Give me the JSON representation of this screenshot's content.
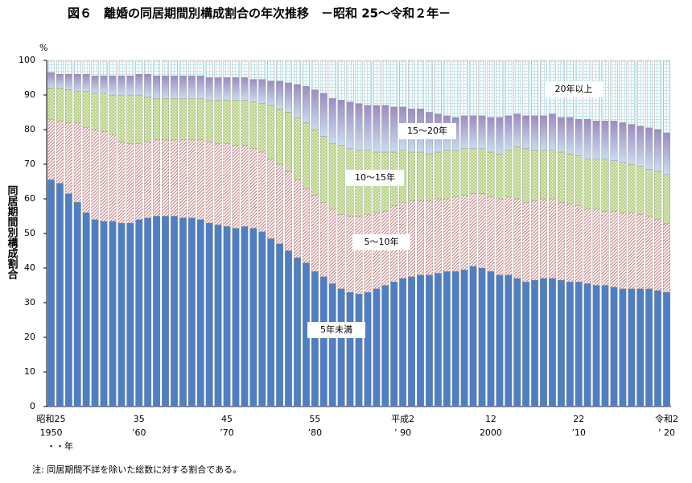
{
  "chart_data": {
    "type": "stacked_bar",
    "title": "図６　離婚の同居期間別構成割合の年次推移　－昭和 25～令和２年－",
    "y_label": "同居期間別構成割合",
    "y_unit": "%",
    "x_label": "・・年",
    "note": "注: 同居期間不詳を除いた総数に対する割合である。",
    "categories": [
      "昭和25",
      null,
      null,
      null,
      null,
      null,
      null,
      null,
      null,
      null,
      "35",
      null,
      null,
      null,
      null,
      null,
      null,
      null,
      null,
      null,
      "45",
      null,
      null,
      null,
      null,
      null,
      null,
      null,
      null,
      null,
      "55",
      null,
      null,
      null,
      null,
      null,
      null,
      null,
      null,
      null,
      "平成2",
      null,
      null,
      null,
      null,
      null,
      null,
      null,
      null,
      null,
      "12",
      null,
      null,
      null,
      null,
      null,
      null,
      null,
      null,
      null,
      "22",
      null,
      null,
      null,
      null,
      null,
      null,
      null,
      null,
      null,
      "令和2"
    ],
    "categories_western": [
      "1950",
      null,
      null,
      null,
      null,
      null,
      null,
      null,
      null,
      null,
      "’60",
      null,
      null,
      null,
      null,
      null,
      null,
      null,
      null,
      null,
      "’70",
      null,
      null,
      null,
      null,
      null,
      null,
      null,
      null,
      null,
      "’80",
      null,
      null,
      null,
      null,
      null,
      null,
      null,
      null,
      null,
      "’ 90",
      null,
      null,
      null,
      null,
      null,
      null,
      null,
      null,
      null,
      "2000",
      null,
      null,
      null,
      null,
      null,
      null,
      null,
      null,
      null,
      "’10",
      null,
      null,
      null,
      null,
      null,
      null,
      null,
      null,
      null,
      "’ 20"
    ],
    "ylim": [
      0,
      100
    ],
    "yticks": [
      0,
      10,
      20,
      30,
      40,
      50,
      60,
      70,
      80,
      90,
      100
    ],
    "series": [
      {
        "name": "5年未満",
        "color": "#4f7fc2",
        "pattern": "solid",
        "values": [
          65.5,
          64.5,
          61.5,
          59,
          56,
          54,
          53.5,
          53.5,
          53,
          53,
          54,
          54.5,
          55,
          55,
          55,
          54.5,
          54.5,
          54,
          53,
          52.5,
          52,
          51.5,
          52,
          51.5,
          50.5,
          48.5,
          47,
          45,
          43,
          41.5,
          39,
          37.5,
          35.5,
          34,
          33,
          32.5,
          33,
          34,
          35,
          36,
          37,
          37.5,
          38,
          38,
          38.5,
          39,
          39,
          39.5,
          40.5,
          40,
          39,
          38,
          38,
          37,
          36,
          36.5,
          37,
          37,
          36.5,
          36,
          36,
          35.5,
          35,
          35,
          34.5,
          34,
          34,
          34,
          34,
          33.5,
          33
        ]
      },
      {
        "name": "5～10年",
        "color": "#d08a8a",
        "pattern": "stripes",
        "values": [
          17.5,
          18,
          20.5,
          23,
          24.5,
          26,
          26,
          25,
          23.5,
          23,
          22,
          22,
          22,
          22,
          22,
          22.5,
          22.5,
          23,
          23.5,
          23.5,
          24,
          24,
          23.5,
          23,
          23,
          23,
          23,
          23,
          22.5,
          21.5,
          22,
          21.5,
          21.5,
          21.5,
          22,
          22.5,
          22.5,
          22,
          21.5,
          22,
          22,
          22,
          21.5,
          21.5,
          21.5,
          21,
          21.5,
          21.5,
          21,
          21.5,
          21.5,
          22,
          22.5,
          23,
          23,
          23,
          23,
          23,
          22.5,
          22.5,
          22,
          21.5,
          22,
          21.5,
          22,
          22,
          22,
          21.5,
          21,
          20.5,
          20
        ]
      },
      {
        "name": "10～15年",
        "color": "#b9d486",
        "pattern": "dots",
        "values": [
          9,
          9.5,
          9.5,
          9,
          10.5,
          10.5,
          11,
          11.5,
          13.5,
          14,
          14,
          13,
          12,
          12,
          12,
          12,
          12,
          12,
          12,
          12.5,
          12.5,
          13,
          13,
          13.5,
          14,
          15.5,
          16,
          17,
          18,
          19,
          19,
          19,
          19,
          20,
          19.5,
          19,
          18.5,
          17.5,
          17,
          15.5,
          15,
          14,
          14,
          13.5,
          13.5,
          14,
          13.5,
          13.5,
          13,
          13,
          13,
          13,
          13.5,
          15,
          15.5,
          14.5,
          14,
          14,
          14.5,
          14.5,
          14.5,
          14.5,
          14.5,
          15,
          14.5,
          14.5,
          14,
          14,
          13.5,
          14,
          14
        ]
      },
      {
        "name": "15～20年",
        "color": "#9c8cc2",
        "pattern": "gradient",
        "values": [
          4.5,
          4,
          4.5,
          5,
          5,
          5,
          5,
          5.5,
          5.5,
          5.5,
          6,
          6.5,
          6.5,
          6.5,
          6.5,
          6.5,
          6.5,
          6.5,
          6.5,
          6.5,
          6.5,
          6.5,
          6.5,
          6.5,
          7,
          7,
          8,
          8.5,
          9.5,
          10.5,
          11.5,
          12.5,
          13,
          13,
          13.5,
          13.5,
          13,
          13.5,
          13.5,
          13,
          12.5,
          12.5,
          12.5,
          12,
          11,
          10,
          9.5,
          9.5,
          9.5,
          9.5,
          10,
          10.5,
          10,
          9.5,
          9.5,
          10,
          10,
          10.5,
          10,
          10.5,
          10.5,
          11.5,
          11,
          11,
          11.5,
          11.5,
          11.5,
          11.5,
          12,
          12,
          12
        ]
      },
      {
        "name": "20年以上",
        "color": "#bfe6ef",
        "pattern": "grid",
        "values": [
          3.5,
          4,
          4,
          4,
          4,
          4.5,
          4.5,
          4.5,
          4.5,
          4.5,
          4,
          4,
          4.5,
          4.5,
          4.5,
          4.5,
          4.5,
          4.5,
          5,
          5,
          5,
          5,
          5,
          5.5,
          5.5,
          6,
          6,
          6.5,
          7,
          7.5,
          8.5,
          9.5,
          11,
          11.5,
          12,
          12.5,
          13,
          13,
          13,
          13.5,
          13.5,
          14,
          14,
          15,
          15.5,
          16,
          16.5,
          16,
          16,
          16,
          16.5,
          16.5,
          16,
          15.5,
          16,
          16,
          16,
          15.5,
          16.5,
          16.5,
          17,
          17,
          17.5,
          17.5,
          17.5,
          18,
          18.5,
          19,
          19.5,
          20,
          21
        ]
      }
    ]
  }
}
